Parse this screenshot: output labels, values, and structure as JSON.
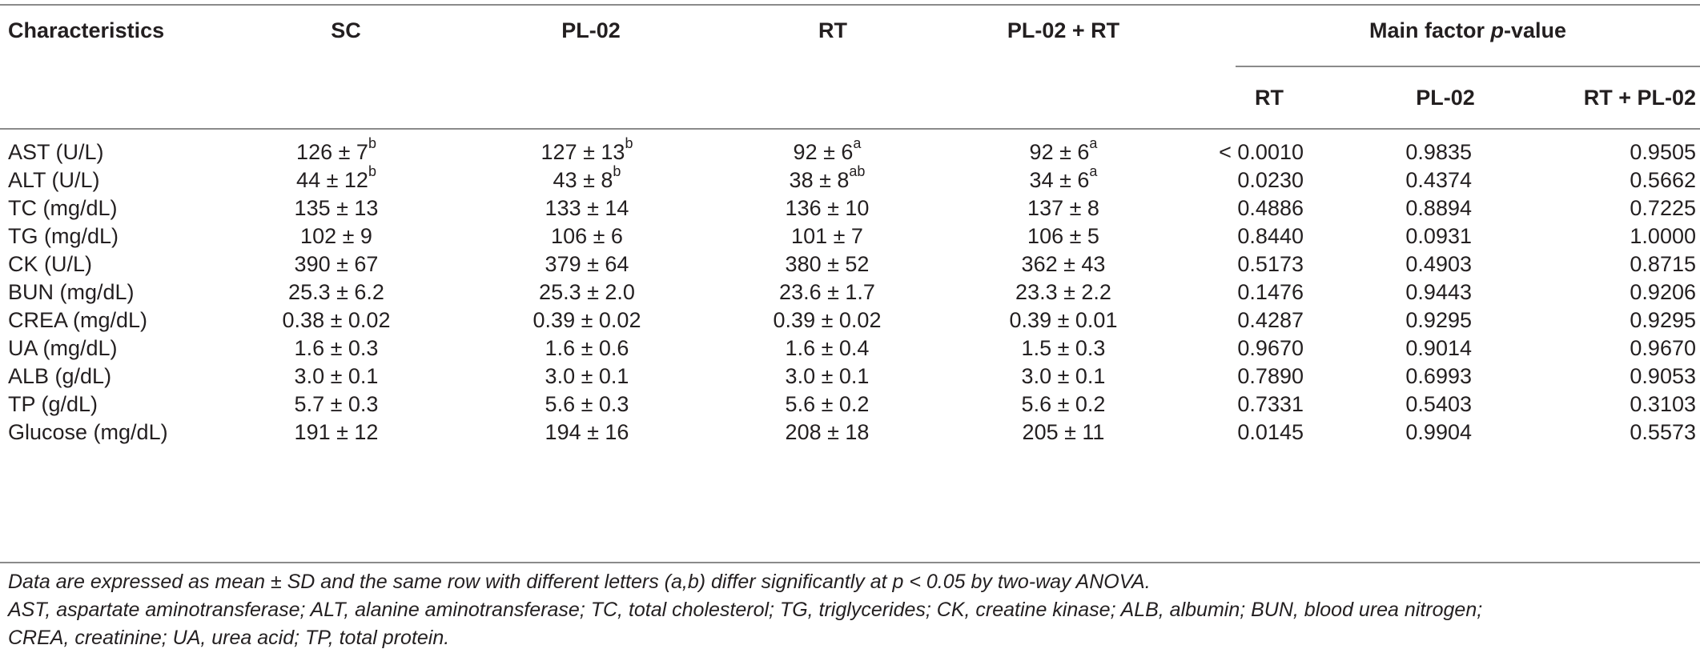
{
  "header": {
    "characteristics": "Characteristics",
    "sc": "SC",
    "pl02": "PL-02",
    "rt": "RT",
    "pl02_rt": "PL-02 + RT",
    "main_factor_prefix": "Main factor ",
    "main_factor_italic": "p",
    "main_factor_suffix": "-value",
    "sub_rt": "RT",
    "sub_pl02": "PL-02",
    "sub_rt_pl02": "RT + PL-02"
  },
  "rows": [
    {
      "label": "AST (U/L)",
      "sc": "126 ± 7",
      "sc_sup": "b",
      "pl02": "127 ± 13",
      "pl02_sup": "b",
      "rt": "92 ± 6",
      "rt_sup": "a",
      "pl02rt": "92 ± 6",
      "pl02rt_sup": "a",
      "p_rt": "< 0.0010",
      "p_pl02": "0.9835",
      "p_rtpl02": "0.9505"
    },
    {
      "label": "ALT (U/L)",
      "sc": "44 ± 12",
      "sc_sup": "b",
      "pl02": "43 ± 8",
      "pl02_sup": "b",
      "rt": "38 ± 8",
      "rt_sup": "ab",
      "pl02rt": "34 ± 6",
      "pl02rt_sup": "a",
      "p_rt": "0.0230",
      "p_pl02": "0.4374",
      "p_rtpl02": "0.5662"
    },
    {
      "label": "TC (mg/dL)",
      "sc": "135 ± 13",
      "sc_sup": "",
      "pl02": "133 ± 14",
      "pl02_sup": "",
      "rt": "136 ± 10",
      "rt_sup": "",
      "pl02rt": "137 ± 8",
      "pl02rt_sup": "",
      "p_rt": "0.4886",
      "p_pl02": "0.8894",
      "p_rtpl02": "0.7225"
    },
    {
      "label": "TG (mg/dL)",
      "sc": "102 ± 9",
      "sc_sup": "",
      "pl02": "106 ± 6",
      "pl02_sup": "",
      "rt": "101 ± 7",
      "rt_sup": "",
      "pl02rt": "106 ± 5",
      "pl02rt_sup": "",
      "p_rt": "0.8440",
      "p_pl02": "0.0931",
      "p_rtpl02": "1.0000"
    },
    {
      "label": "CK (U/L)",
      "sc": "390 ± 67",
      "sc_sup": "",
      "pl02": "379 ± 64",
      "pl02_sup": "",
      "rt": "380 ± 52",
      "rt_sup": "",
      "pl02rt": "362 ± 43",
      "pl02rt_sup": "",
      "p_rt": "0.5173",
      "p_pl02": "0.4903",
      "p_rtpl02": "0.8715"
    },
    {
      "label": "BUN (mg/dL)",
      "sc": "25.3 ± 6.2",
      "sc_sup": "",
      "pl02": "25.3 ± 2.0",
      "pl02_sup": "",
      "rt": "23.6 ± 1.7",
      "rt_sup": "",
      "pl02rt": "23.3 ± 2.2",
      "pl02rt_sup": "",
      "p_rt": "0.1476",
      "p_pl02": "0.9443",
      "p_rtpl02": "0.9206"
    },
    {
      "label": "CREA (mg/dL)",
      "sc": "0.38 ± 0.02",
      "sc_sup": "",
      "pl02": "0.39 ± 0.02",
      "pl02_sup": "",
      "rt": "0.39 ± 0.02",
      "rt_sup": "",
      "pl02rt": "0.39 ± 0.01",
      "pl02rt_sup": "",
      "p_rt": "0.4287",
      "p_pl02": "0.9295",
      "p_rtpl02": "0.9295"
    },
    {
      "label": "UA (mg/dL)",
      "sc": "1.6 ± 0.3",
      "sc_sup": "",
      "pl02": "1.6 ± 0.6",
      "pl02_sup": "",
      "rt": "1.6 ± 0.4",
      "rt_sup": "",
      "pl02rt": "1.5 ± 0.3",
      "pl02rt_sup": "",
      "p_rt": "0.9670",
      "p_pl02": "0.9014",
      "p_rtpl02": "0.9670"
    },
    {
      "label": "ALB (g/dL)",
      "sc": "3.0 ± 0.1",
      "sc_sup": "",
      "pl02": "3.0 ± 0.1",
      "pl02_sup": "",
      "rt": "3.0 ± 0.1",
      "rt_sup": "",
      "pl02rt": "3.0 ± 0.1",
      "pl02rt_sup": "",
      "p_rt": "0.7890",
      "p_pl02": "0.6993",
      "p_rtpl02": "0.9053"
    },
    {
      "label": "TP (g/dL)",
      "sc": "5.7 ± 0.3",
      "sc_sup": "",
      "pl02": "5.6 ± 0.3",
      "pl02_sup": "",
      "rt": "5.6 ± 0.2",
      "rt_sup": "",
      "pl02rt": "5.6 ± 0.2",
      "pl02rt_sup": "",
      "p_rt": "0.7331",
      "p_pl02": "0.5403",
      "p_rtpl02": "0.3103"
    },
    {
      "label": "Glucose (mg/dL)",
      "sc": "191 ± 12",
      "sc_sup": "",
      "pl02": "194 ± 16",
      "pl02_sup": "",
      "rt": "208 ± 18",
      "rt_sup": "",
      "pl02rt": "205 ± 11",
      "pl02rt_sup": "",
      "p_rt": "0.0145",
      "p_pl02": "0.9904",
      "p_rtpl02": "0.5573"
    }
  ],
  "footnotes": [
    "Data are expressed as mean  ± SD and the same row with different letters (a,b) differ significantly at p < 0.05 by two-way ANOVA.",
    "AST, aspartate aminotransferase; ALT, alanine aminotransferase; TC, total cholesterol; TG, triglycerides; CK, creatine kinase; ALB, albumin; BUN, blood urea nitrogen;",
    "CREA, creatinine; UA, urea acid; TP, total protein."
  ]
}
